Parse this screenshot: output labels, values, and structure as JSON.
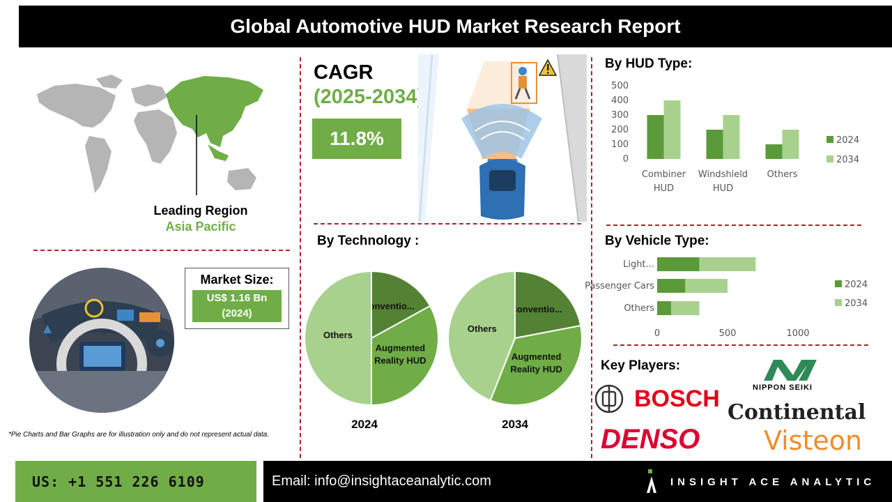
{
  "title": "Global Automotive HUD Market Research Report",
  "region": {
    "label": "Leading Region",
    "value": "Asia Pacific"
  },
  "cagr": {
    "title": "CAGR",
    "years": "(2025-2034)",
    "value": "11.8%"
  },
  "market_size": {
    "title": "Market Size:",
    "value": "US$ 1.16 Bn",
    "year": "(2024)"
  },
  "disclaimer": "*Pie Charts and Bar Graphs are for illustration only and do not represent actual data.",
  "footer": {
    "phone": "US: +1 551 226 6109",
    "email": "Email: info@insightaceanalytic.com",
    "brand": "INSIGHT ACE ANALYTIC"
  },
  "key_players": {
    "title": "Key Players:",
    "logos": [
      "BOSCH",
      "DENSO",
      "NIPPON SEIKI",
      "Continental",
      "Visteon"
    ]
  },
  "colors": {
    "dark_green": "#5b9a3b",
    "mid_green": "#70ad47",
    "light_green": "#a9d18e",
    "accent_red": "#b22222"
  },
  "icons": [
    "world-map-icon",
    "car-radar-icon",
    "pedestrian-warning-icon",
    "hud-dashboard-icon",
    "insight-ace-logo-icon",
    "bosch-emblem-icon"
  ],
  "chart_data": [
    {
      "type": "bar",
      "title": "By HUD Type:",
      "categories": [
        "Combiner HUD",
        "Windshield HUD",
        "Others"
      ],
      "category_lines": [
        [
          "Combiner",
          "HUD"
        ],
        [
          "Windshield",
          "HUD"
        ],
        [
          "Others"
        ]
      ],
      "series": [
        {
          "name": "2024",
          "values": [
            300,
            200,
            100
          ],
          "color": "#5b9a3b"
        },
        {
          "name": "2034",
          "values": [
            400,
            300,
            200
          ],
          "color": "#a9d18e"
        }
      ],
      "yticks": [
        0,
        100,
        200,
        300,
        400,
        500
      ],
      "ylim": [
        0,
        500
      ],
      "legend": "right"
    },
    {
      "type": "pie",
      "title": "By Technology :",
      "pies": [
        {
          "year": "2024",
          "slices": [
            {
              "label": "Conventio...",
              "value": 17,
              "color": "#548235"
            },
            {
              "label": "Augmented Reality HUD",
              "value": 33,
              "color": "#70ad47"
            },
            {
              "label": "Others",
              "value": 50,
              "color": "#a9d18e"
            }
          ]
        },
        {
          "year": "2034",
          "slices": [
            {
              "label": "Conventio...",
              "value": 22,
              "color": "#548235"
            },
            {
              "label": "Augmented Reality HUD",
              "value": 34,
              "color": "#70ad47"
            },
            {
              "label": "Others",
              "value": 44,
              "color": "#a9d18e"
            }
          ]
        }
      ]
    },
    {
      "type": "bar",
      "orientation": "horizontal",
      "title": "By Vehicle Type:",
      "categories": [
        "Light...",
        "Passenger Cars",
        "Others"
      ],
      "series": [
        {
          "name": "2024",
          "values": [
            300,
            200,
            100
          ],
          "color": "#5b9a3b"
        },
        {
          "name": "2034",
          "values": [
            400,
            300,
            200
          ],
          "color": "#a9d18e"
        }
      ],
      "xticks": [
        0,
        500,
        1000
      ],
      "xlim": [
        0,
        1000
      ],
      "stacked": true,
      "legend": "right"
    }
  ]
}
